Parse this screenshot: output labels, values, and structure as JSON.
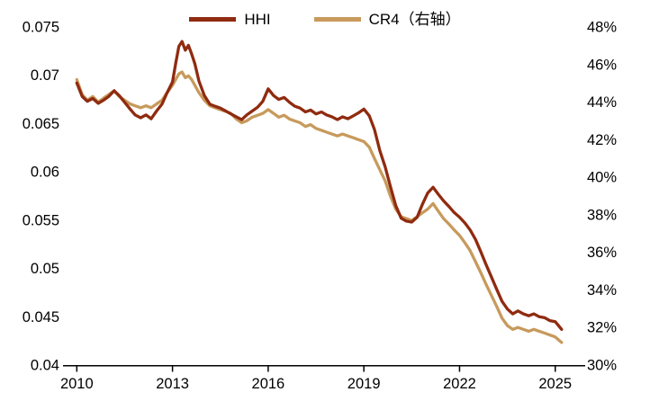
{
  "chart_data": {
    "type": "line",
    "title": "",
    "legend_position": "top-center",
    "grid": false,
    "x": [
      2010,
      2010.17,
      2010.33,
      2010.5,
      2010.67,
      2010.83,
      2011,
      2011.17,
      2011.33,
      2011.5,
      2011.67,
      2011.83,
      2012,
      2012.17,
      2012.33,
      2012.5,
      2012.67,
      2012.83,
      2013,
      2013.1,
      2013.2,
      2013.3,
      2013.4,
      2013.5,
      2013.6,
      2013.7,
      2013.83,
      2014,
      2014.17,
      2014.33,
      2014.5,
      2014.67,
      2014.83,
      2015,
      2015.17,
      2015.33,
      2015.5,
      2015.67,
      2015.83,
      2016,
      2016.17,
      2016.33,
      2016.5,
      2016.67,
      2016.83,
      2017,
      2017.17,
      2017.33,
      2017.5,
      2017.67,
      2017.83,
      2018,
      2018.17,
      2018.33,
      2018.5,
      2018.67,
      2018.83,
      2019,
      2019.17,
      2019.33,
      2019.5,
      2019.67,
      2019.83,
      2020,
      2020.17,
      2020.33,
      2020.5,
      2020.67,
      2020.83,
      2021,
      2021.17,
      2021.33,
      2021.5,
      2021.67,
      2021.83,
      2022,
      2022.17,
      2022.33,
      2022.5,
      2022.67,
      2022.83,
      2023,
      2023.17,
      2023.33,
      2023.5,
      2023.67,
      2023.83,
      2024,
      2024.17,
      2024.33,
      2024.5,
      2024.67,
      2024.83,
      2025,
      2025.2
    ],
    "series": [
      {
        "name": "HHI",
        "axis": "left",
        "color": "#8F2B10",
        "values": [
          0.0692,
          0.0678,
          0.0673,
          0.0676,
          0.0671,
          0.0674,
          0.0678,
          0.0684,
          0.0679,
          0.0672,
          0.0665,
          0.0659,
          0.0656,
          0.0659,
          0.0655,
          0.0663,
          0.067,
          0.0682,
          0.0693,
          0.0712,
          0.073,
          0.0735,
          0.0726,
          0.0731,
          0.0722,
          0.0712,
          0.0694,
          0.0679,
          0.067,
          0.0668,
          0.0666,
          0.0663,
          0.066,
          0.0657,
          0.0654,
          0.0659,
          0.0663,
          0.0667,
          0.0673,
          0.0686,
          0.0679,
          0.0675,
          0.0677,
          0.0672,
          0.0668,
          0.0666,
          0.0662,
          0.0664,
          0.066,
          0.0662,
          0.0659,
          0.0657,
          0.0654,
          0.0657,
          0.0655,
          0.0658,
          0.0661,
          0.0665,
          0.0658,
          0.0644,
          0.0622,
          0.0605,
          0.0585,
          0.0565,
          0.0552,
          0.0549,
          0.0548,
          0.0553,
          0.0566,
          0.0578,
          0.0584,
          0.0577,
          0.057,
          0.0564,
          0.0558,
          0.0553,
          0.0547,
          0.054,
          0.053,
          0.0517,
          0.0504,
          0.0491,
          0.0478,
          0.0466,
          0.0458,
          0.0453,
          0.0456,
          0.0453,
          0.0451,
          0.0453,
          0.045,
          0.0449,
          0.0446,
          0.0445,
          0.0437
        ]
      },
      {
        "name": "CR4（右轴）",
        "axis": "right",
        "color": "#C79A5C",
        "values": [
          45.2,
          44.4,
          44.1,
          44.3,
          44.0,
          44.2,
          44.4,
          44.6,
          44.3,
          44.1,
          43.9,
          43.8,
          43.7,
          43.8,
          43.7,
          43.9,
          44.1,
          44.5,
          44.9,
          45.2,
          45.5,
          45.6,
          45.3,
          45.4,
          45.2,
          44.9,
          44.5,
          44.1,
          43.8,
          43.7,
          43.6,
          43.5,
          43.4,
          43.1,
          42.9,
          43.0,
          43.2,
          43.3,
          43.4,
          43.6,
          43.4,
          43.2,
          43.3,
          43.1,
          43.0,
          42.9,
          42.7,
          42.8,
          42.6,
          42.5,
          42.4,
          42.3,
          42.2,
          42.3,
          42.2,
          42.1,
          42.0,
          41.9,
          41.6,
          41.0,
          40.4,
          39.8,
          39.0,
          38.3,
          37.9,
          37.8,
          37.7,
          37.9,
          38.1,
          38.3,
          38.6,
          38.2,
          37.8,
          37.5,
          37.2,
          36.9,
          36.5,
          36.1,
          35.5,
          34.9,
          34.3,
          33.7,
          33.1,
          32.5,
          32.1,
          31.9,
          32.0,
          31.9,
          31.8,
          31.9,
          31.8,
          31.7,
          31.6,
          31.5,
          31.2
        ]
      }
    ],
    "left_axis": {
      "min": 0.04,
      "max": 0.075,
      "tick_values": [
        0.075,
        0.07,
        0.065,
        0.06,
        0.055,
        0.05,
        0.045,
        0.04
      ],
      "ticks": [
        "0.075",
        "0.07",
        "0.065",
        "0.06",
        "0.055",
        "0.05",
        "0.045",
        "0.04"
      ]
    },
    "right_axis": {
      "min": 30,
      "max": 48,
      "tick_values": [
        48,
        46,
        44,
        42,
        40,
        38,
        36,
        34,
        32,
        30
      ],
      "ticks": [
        "48%",
        "46%",
        "44%",
        "42%",
        "40%",
        "38%",
        "36%",
        "34%",
        "32%",
        "30%"
      ]
    },
    "x_axis": {
      "min": 2009.85,
      "max": 2025.6,
      "tick_years": [
        2010,
        2013,
        2016,
        2019,
        2022,
        2025
      ],
      "tick_labels": [
        "2010",
        "2013",
        "2016",
        "2019",
        "2022",
        "2025"
      ]
    }
  }
}
